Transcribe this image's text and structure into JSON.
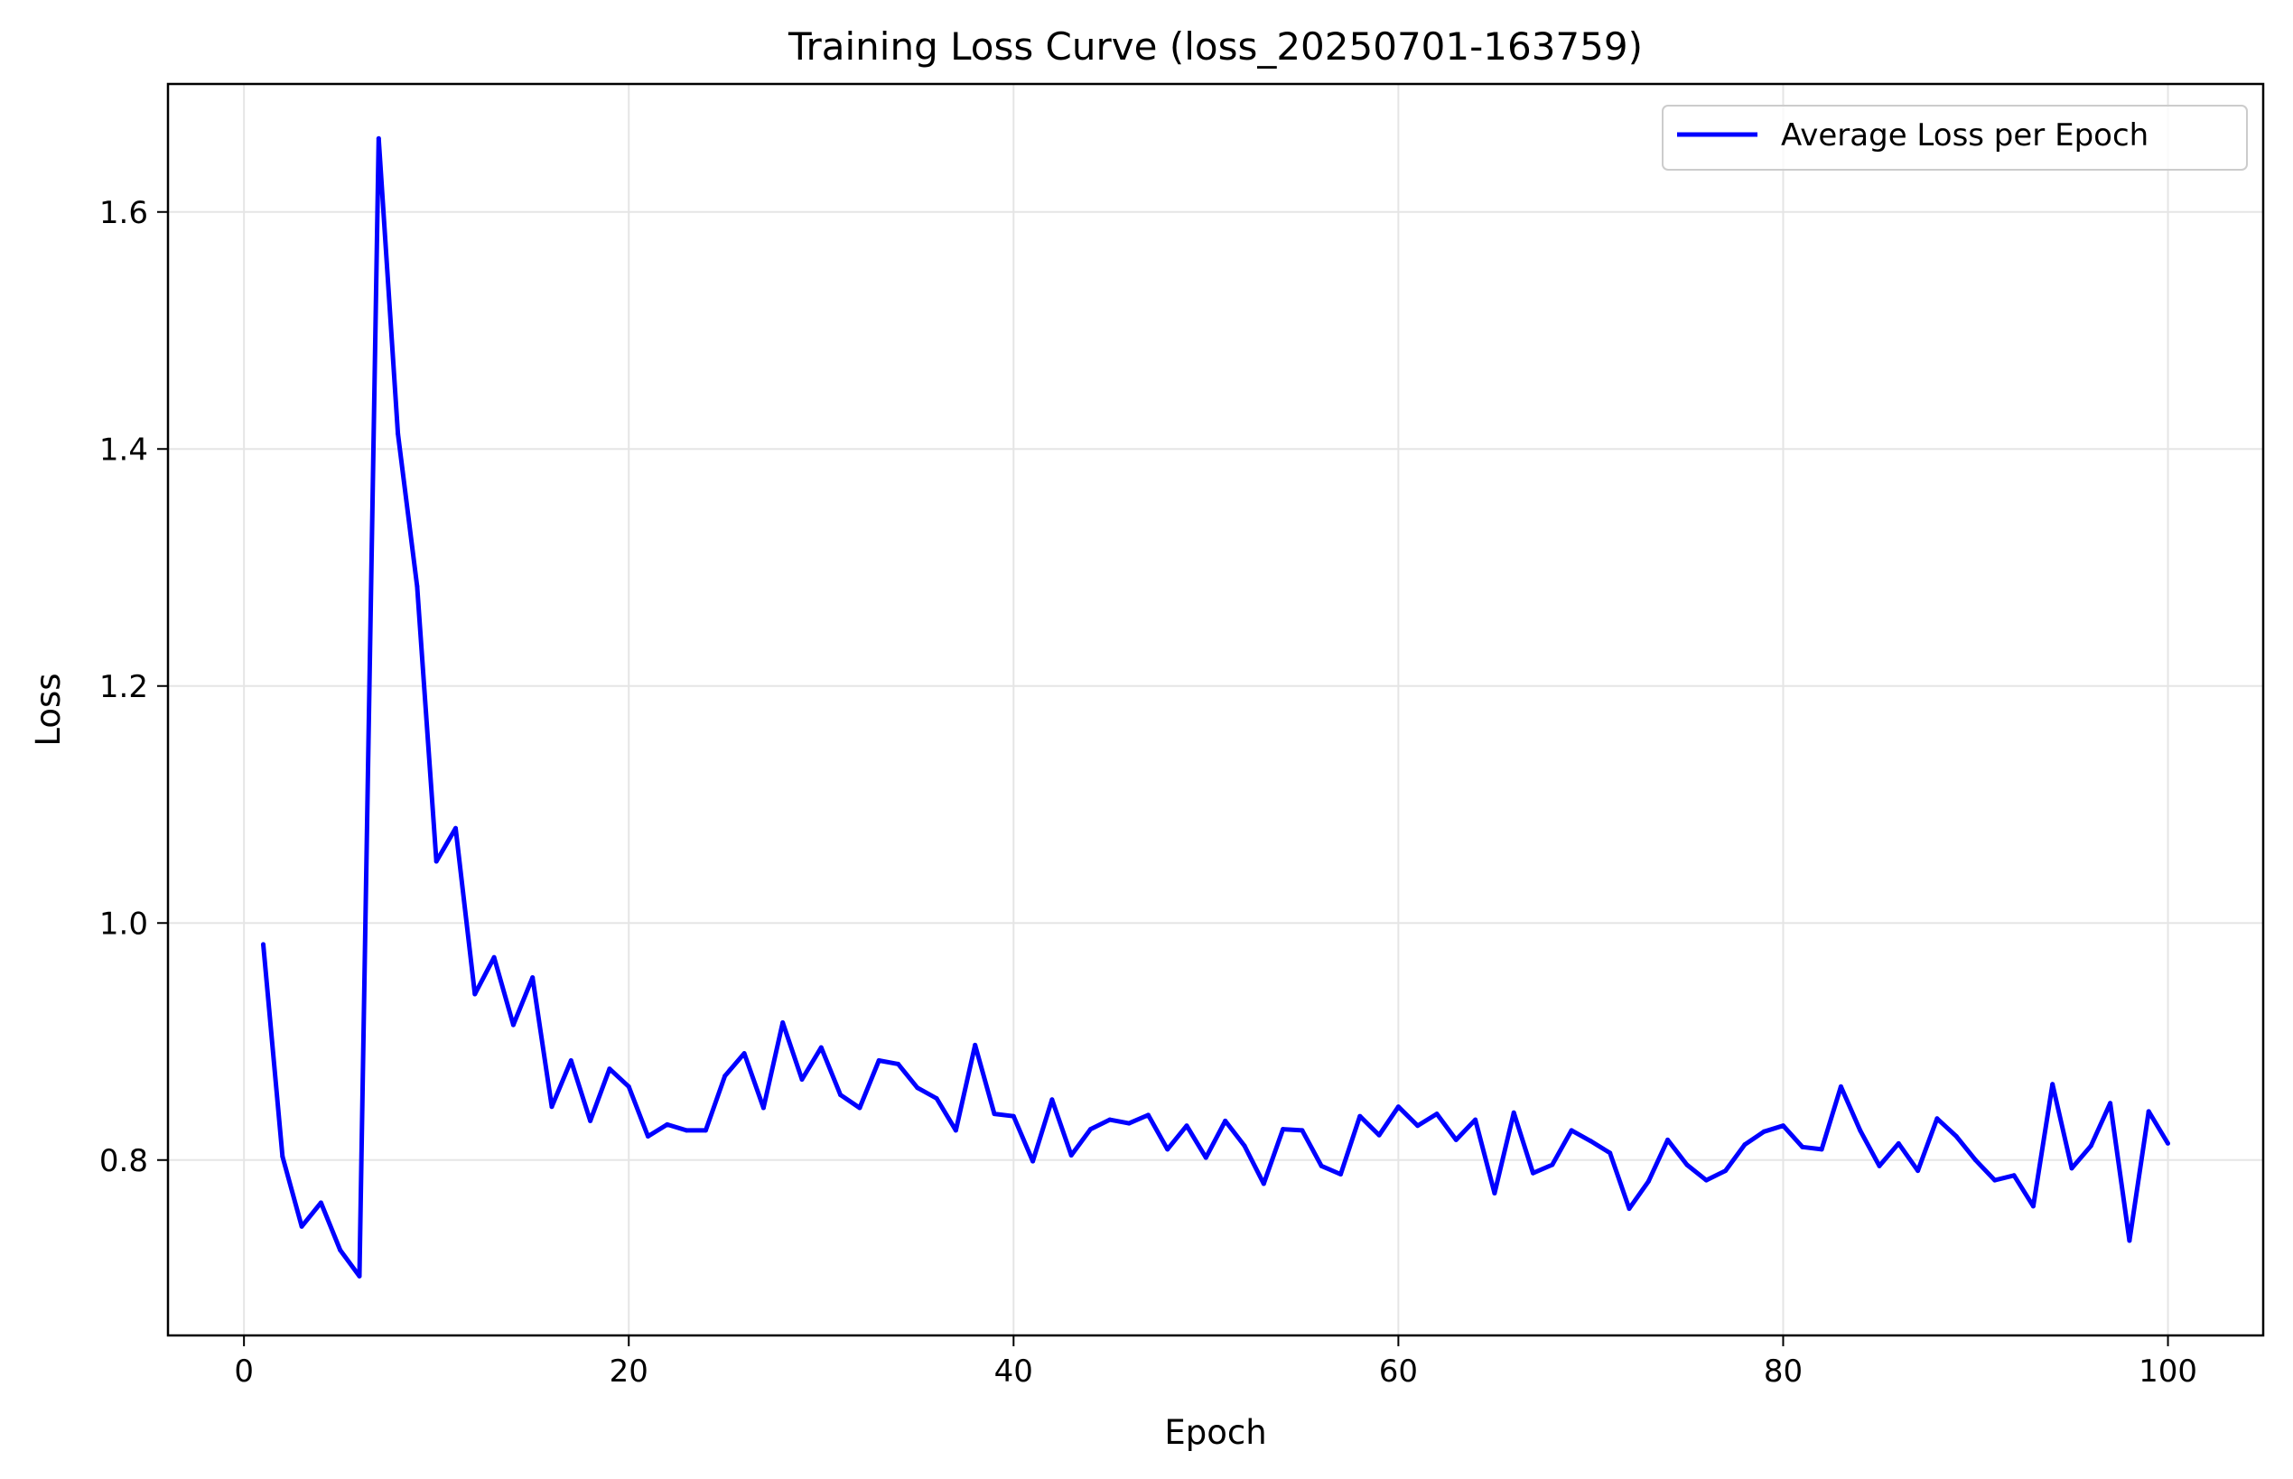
{
  "chart_data": {
    "type": "line",
    "title": "Training Loss Curve (loss_20250701-163759)",
    "xlabel": "Epoch",
    "ylabel": "Loss",
    "xlim": [
      -3.95,
      104.95
    ],
    "ylim": [
      0.652,
      1.708
    ],
    "xticks": [
      0,
      20,
      40,
      60,
      80,
      100
    ],
    "yticks": [
      0.8,
      1.0,
      1.2,
      1.4,
      1.6
    ],
    "xtick_labels": [
      "0",
      "20",
      "40",
      "60",
      "80",
      "100"
    ],
    "ytick_labels": [
      "0.8",
      "1.0",
      "1.2",
      "1.4",
      "1.6"
    ],
    "grid": true,
    "legend_position": "top-right",
    "series": [
      {
        "name": "Average Loss per Epoch",
        "color": "#0000ff",
        "x": [
          1,
          2,
          3,
          4,
          5,
          6,
          7,
          8,
          9,
          10,
          11,
          12,
          13,
          14,
          15,
          16,
          17,
          18,
          19,
          20,
          21,
          22,
          23,
          24,
          25,
          26,
          27,
          28,
          29,
          30,
          31,
          32,
          33,
          34,
          35,
          36,
          37,
          38,
          39,
          40,
          41,
          42,
          43,
          44,
          45,
          46,
          47,
          48,
          49,
          50,
          51,
          52,
          53,
          54,
          55,
          56,
          57,
          58,
          59,
          60,
          61,
          62,
          63,
          64,
          65,
          66,
          67,
          68,
          69,
          70,
          71,
          72,
          73,
          74,
          75,
          76,
          77,
          78,
          79,
          80,
          81,
          82,
          83,
          84,
          85,
          86,
          87,
          88,
          89,
          90,
          91,
          92,
          93,
          94,
          95,
          96,
          97,
          98,
          99,
          100
        ],
        "y": [
          0.982,
          0.803,
          0.744,
          0.764,
          0.724,
          0.702,
          1.662,
          1.413,
          1.284,
          1.052,
          1.08,
          0.94,
          0.971,
          0.914,
          0.954,
          0.845,
          0.884,
          0.833,
          0.877,
          0.862,
          0.82,
          0.83,
          0.825,
          0.825,
          0.871,
          0.89,
          0.844,
          0.916,
          0.868,
          0.895,
          0.855,
          0.844,
          0.884,
          0.881,
          0.861,
          0.852,
          0.825,
          0.897,
          0.839,
          0.837,
          0.799,
          0.851,
          0.804,
          0.826,
          0.834,
          0.831,
          0.838,
          0.809,
          0.829,
          0.802,
          0.833,
          0.812,
          0.78,
          0.826,
          0.825,
          0.795,
          0.788,
          0.837,
          0.821,
          0.845,
          0.829,
          0.839,
          0.817,
          0.834,
          0.772,
          0.84,
          0.789,
          0.796,
          0.825,
          0.816,
          0.806,
          0.759,
          0.782,
          0.817,
          0.796,
          0.783,
          0.791,
          0.813,
          0.824,
          0.829,
          0.811,
          0.809,
          0.862,
          0.825,
          0.795,
          0.814,
          0.791,
          0.835,
          0.82,
          0.8,
          0.783,
          0.787,
          0.761,
          0.864,
          0.793,
          0.812,
          0.848,
          0.732,
          0.841,
          0.814
        ]
      }
    ]
  }
}
